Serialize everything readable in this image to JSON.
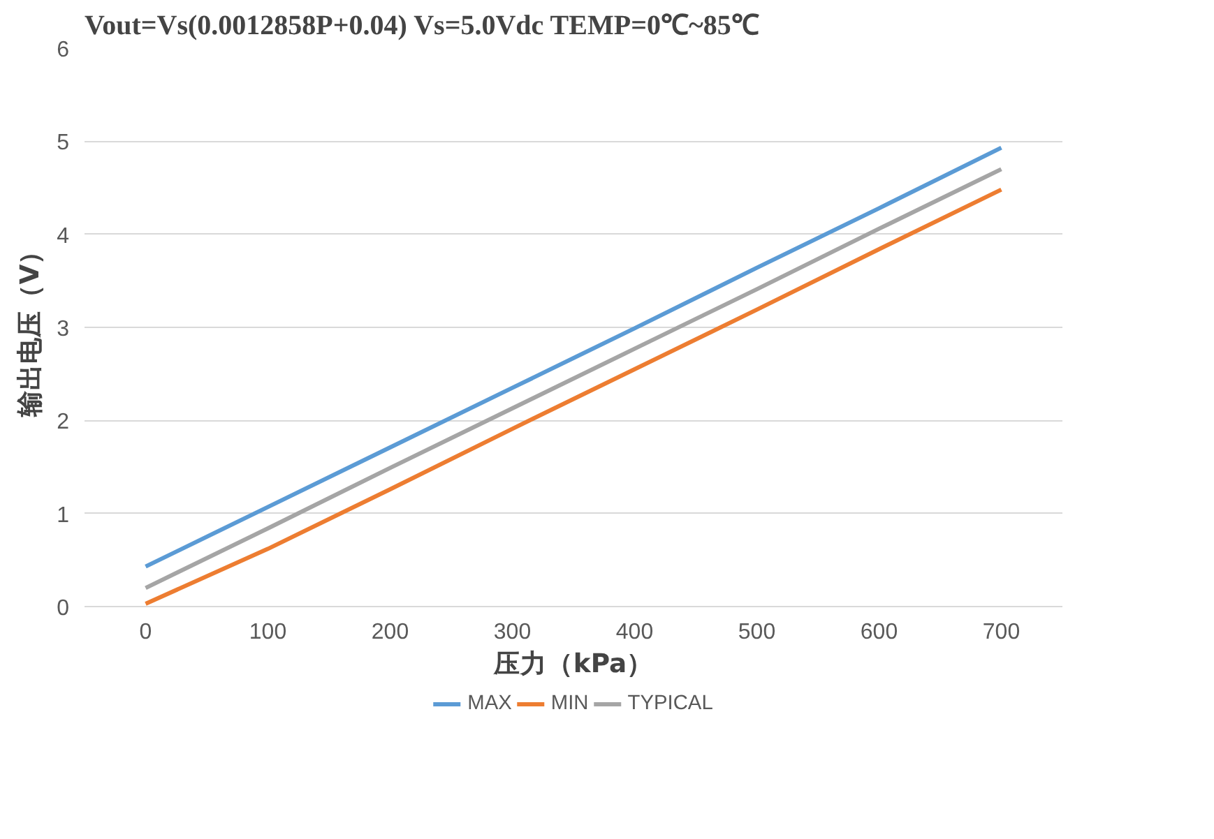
{
  "chart_data": {
    "type": "line",
    "title": "Vout=Vs(0.0012858P+0.04)      Vs=5.0Vdc TEMP=0℃~85℃",
    "xlabel": "压力（kPa）",
    "ylabel": "输出电压（V）",
    "categories": [
      "0",
      "100",
      "200",
      "300",
      "400",
      "500",
      "600",
      "700"
    ],
    "series": [
      {
        "name": "MAX",
        "color": "#5b9bd5",
        "values": [
          0.43,
          1.07,
          1.71,
          2.35,
          2.99,
          3.64,
          4.28,
          4.93
        ]
      },
      {
        "name": "MIN",
        "color": "#ed7d31",
        "values": [
          0.03,
          0.62,
          1.26,
          1.91,
          2.55,
          3.19,
          3.84,
          4.48
        ]
      },
      {
        "name": "TYPICAL",
        "color": "#a5a5a5",
        "values": [
          0.2,
          0.84,
          1.49,
          2.13,
          2.77,
          3.41,
          4.06,
          4.7
        ]
      }
    ],
    "ylim": [
      0,
      6
    ],
    "yticks": [
      0,
      1,
      2,
      3,
      4,
      5,
      6
    ],
    "grid": "y",
    "legend": "bottom",
    "marker": "none",
    "line_style": "solid"
  }
}
